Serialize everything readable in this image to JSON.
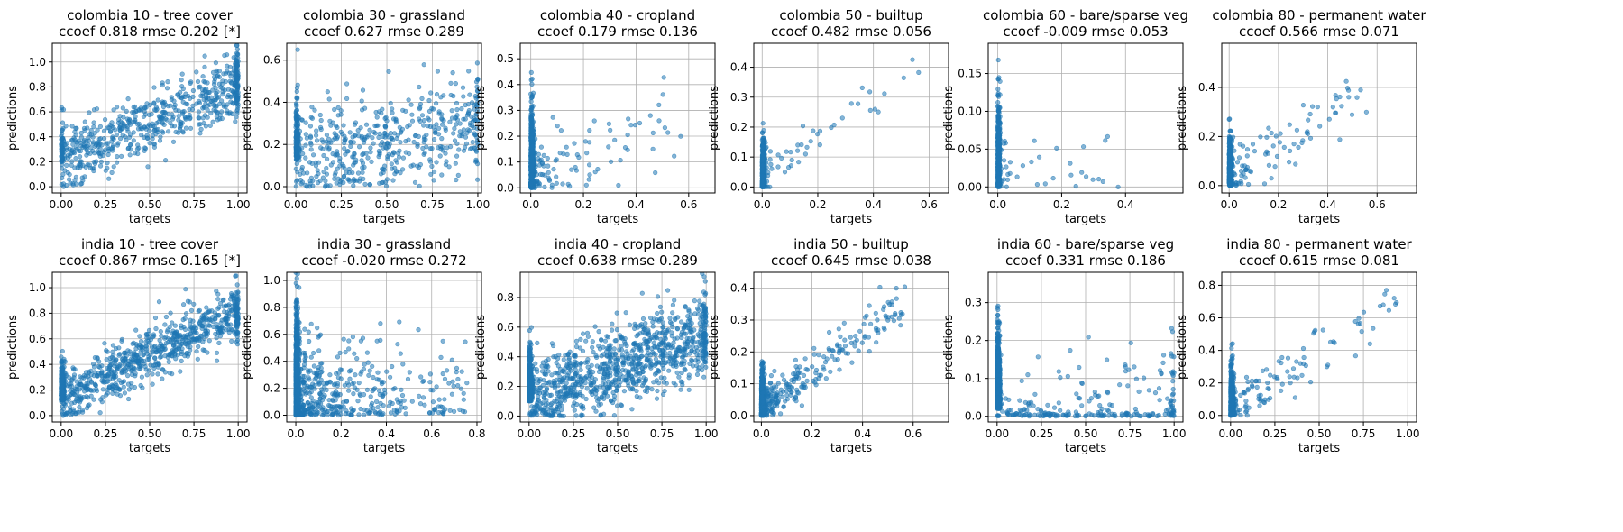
{
  "chart_data": [
    {
      "type": "scatter",
      "title": [
        "colombia 10 - tree cover",
        "ccoef 0.818 rmse 0.202 [*]"
      ],
      "xlabel": "targets",
      "ylabel": "predictions",
      "xlim": [
        -0.05,
        1.05
      ],
      "ylim": [
        -0.05,
        1.15
      ],
      "xticks": [
        "0.00",
        "0.25",
        "0.50",
        "0.75",
        "1.00"
      ],
      "yticks": [
        "0.0",
        "0.2",
        "0.4",
        "0.6",
        "0.8",
        "1.0"
      ],
      "grid": true,
      "pattern": "linear",
      "n": 700,
      "y_intercept": 0.2,
      "y_slope": 0.62,
      "noise": 0.13,
      "mass_x0": 0.1,
      "mass_x1": 0.15
    },
    {
      "type": "scatter",
      "title": [
        "colombia 30 - grassland",
        "ccoef 0.627 rmse 0.289"
      ],
      "xlabel": "targets",
      "ylabel": "predictions",
      "xlim": [
        -0.05,
        1.02
      ],
      "ylim": [
        -0.03,
        0.68
      ],
      "xticks": [
        "0.00",
        "0.25",
        "0.50",
        "0.75",
        "1.00"
      ],
      "yticks": [
        "0.0",
        "0.2",
        "0.4",
        "0.6"
      ],
      "grid": true,
      "pattern": "cloud",
      "n": 650,
      "y_intercept": 0.12,
      "y_slope": 0.18,
      "noise": 0.12,
      "mass_x0": 0.2,
      "mass_x1": 0.05
    },
    {
      "type": "scatter",
      "title": [
        "colombia 40 - cropland",
        "ccoef 0.179 rmse 0.136"
      ],
      "xlabel": "targets",
      "ylabel": "predictions",
      "xlim": [
        -0.04,
        0.7
      ],
      "ylim": [
        -0.02,
        0.56
      ],
      "xticks": [
        "0.0",
        "0.2",
        "0.4",
        "0.6"
      ],
      "yticks": [
        "0.0",
        "0.1",
        "0.2",
        "0.3",
        "0.4",
        "0.5"
      ],
      "grid": true,
      "pattern": "zero",
      "n": 700,
      "y_intercept": 0.04,
      "y_slope": 0.4,
      "noise": 0.08,
      "mass_x0": 0.8,
      "mass_x1": 0.0
    },
    {
      "type": "scatter",
      "title": [
        "colombia 50 - builtup",
        "ccoef 0.482 rmse 0.056"
      ],
      "xlabel": "targets",
      "ylabel": "predictions",
      "xlim": [
        -0.03,
        0.67
      ],
      "ylim": [
        -0.02,
        0.48
      ],
      "xticks": [
        "0.0",
        "0.2",
        "0.4",
        "0.6"
      ],
      "yticks": [
        "0.0",
        "0.1",
        "0.2",
        "0.3",
        "0.4"
      ],
      "grid": true,
      "pattern": "zero",
      "n": 500,
      "y_intercept": 0.02,
      "y_slope": 0.7,
      "noise": 0.04,
      "mass_x0": 0.85,
      "mass_x1": 0.0
    },
    {
      "type": "scatter",
      "title": [
        "colombia 60 - bare/sparse veg",
        "ccoef -0.009 rmse 0.053"
      ],
      "xlabel": "targets",
      "ylabel": "predictions",
      "xlim": [
        -0.03,
        0.58
      ],
      "ylim": [
        -0.008,
        0.19
      ],
      "xticks": [
        "0.0",
        "0.2",
        "0.4"
      ],
      "yticks": [
        "0.00",
        "0.05",
        "0.10",
        "0.15"
      ],
      "grid": true,
      "pattern": "zero",
      "n": 500,
      "y_intercept": 0.01,
      "y_slope": 0.0,
      "noise": 0.03,
      "mass_x0": 0.9,
      "mass_x1": 0.0
    },
    {
      "type": "scatter",
      "title": [
        "colombia 80 - permanent water",
        "ccoef 0.566 rmse 0.071"
      ],
      "xlabel": "targets",
      "ylabel": "predictions",
      "xlim": [
        -0.03,
        0.76
      ],
      "ylim": [
        -0.03,
        0.58
      ],
      "xticks": [
        "0.0",
        "0.2",
        "0.4",
        "0.6"
      ],
      "yticks": [
        "0.0",
        "0.2",
        "0.4"
      ],
      "grid": true,
      "pattern": "zero",
      "n": 500,
      "y_intercept": 0.02,
      "y_slope": 0.65,
      "noise": 0.06,
      "mass_x0": 0.75,
      "mass_x1": 0.0
    },
    {
      "type": "scatter",
      "title": [
        "india 10 - tree cover",
        "ccoef 0.867 rmse 0.165 [*]"
      ],
      "xlabel": "targets",
      "ylabel": "predictions",
      "xlim": [
        -0.05,
        1.05
      ],
      "ylim": [
        -0.05,
        1.12
      ],
      "xticks": [
        "0.00",
        "0.25",
        "0.50",
        "0.75",
        "1.00"
      ],
      "yticks": [
        "0.0",
        "0.2",
        "0.4",
        "0.6",
        "0.8",
        "1.0"
      ],
      "grid": true,
      "pattern": "linear",
      "n": 1200,
      "y_intercept": 0.12,
      "y_slope": 0.7,
      "noise": 0.1,
      "mass_x0": 0.35,
      "mass_x1": 0.05
    },
    {
      "type": "scatter",
      "title": [
        "india 30 - grassland",
        "ccoef -0.020 rmse 0.272"
      ],
      "xlabel": "targets",
      "ylabel": "predictions",
      "xlim": [
        -0.04,
        0.82
      ],
      "ylim": [
        -0.05,
        1.06
      ],
      "xticks": [
        "0.0",
        "0.2",
        "0.4",
        "0.6",
        "0.8"
      ],
      "yticks": [
        "0.0",
        "0.2",
        "0.4",
        "0.6",
        "0.8",
        "1.0"
      ],
      "grid": true,
      "pattern": "zero",
      "n": 1100,
      "y_intercept": 0.15,
      "y_slope": 0.0,
      "noise": 0.2,
      "mass_x0": 0.45,
      "mass_x1": 0.0
    },
    {
      "type": "scatter",
      "title": [
        "india 40 - cropland",
        "ccoef 0.638 rmse 0.289"
      ],
      "xlabel": "targets",
      "ylabel": "predictions",
      "xlim": [
        -0.05,
        1.05
      ],
      "ylim": [
        -0.04,
        0.97
      ],
      "xticks": [
        "0.00",
        "0.25",
        "0.50",
        "0.75",
        "1.00"
      ],
      "yticks": [
        "0.0",
        "0.2",
        "0.4",
        "0.6",
        "0.8"
      ],
      "grid": true,
      "pattern": "cloud",
      "n": 1300,
      "y_intercept": 0.1,
      "y_slope": 0.45,
      "noise": 0.14,
      "mass_x0": 0.25,
      "mass_x1": 0.05
    },
    {
      "type": "scatter",
      "title": [
        "india 50 - builtup",
        "ccoef 0.645 rmse 0.038"
      ],
      "xlabel": "targets",
      "ylabel": "predictions",
      "xlim": [
        -0.03,
        0.74
      ],
      "ylim": [
        -0.02,
        0.45
      ],
      "xticks": [
        "0.0",
        "0.2",
        "0.4",
        "0.6"
      ],
      "yticks": [
        "0.0",
        "0.1",
        "0.2",
        "0.3",
        "0.4"
      ],
      "grid": true,
      "pattern": "zero",
      "n": 900,
      "y_intercept": 0.02,
      "y_slope": 0.6,
      "noise": 0.035,
      "mass_x0": 0.6,
      "mass_x1": 0.0
    },
    {
      "type": "scatter",
      "title": [
        "india 60 - bare/sparse veg",
        "ccoef 0.331 rmse 0.186"
      ],
      "xlabel": "targets",
      "ylabel": "predictions",
      "xlim": [
        -0.05,
        1.05
      ],
      "ylim": [
        -0.015,
        0.38
      ],
      "xticks": [
        "0.00",
        "0.25",
        "0.50",
        "0.75",
        "1.00"
      ],
      "yticks": [
        "0.0",
        "0.1",
        "0.2",
        "0.3"
      ],
      "grid": true,
      "pattern": "sparse",
      "n": 900,
      "y_intercept": 0.02,
      "y_slope": 0.05,
      "noise": 0.07,
      "mass_x0": 0.75,
      "mass_x1": 0.04
    },
    {
      "type": "scatter",
      "title": [
        "india 80 - permanent water",
        "ccoef 0.615 rmse 0.081"
      ],
      "xlabel": "targets",
      "ylabel": "predictions",
      "xlim": [
        -0.05,
        1.05
      ],
      "ylim": [
        -0.04,
        0.88
      ],
      "xticks": [
        "0.00",
        "0.25",
        "0.50",
        "0.75",
        "1.00"
      ],
      "yticks": [
        "0.0",
        "0.2",
        "0.4",
        "0.6",
        "0.8"
      ],
      "grid": true,
      "pattern": "zero",
      "n": 600,
      "y_intercept": 0.03,
      "y_slope": 0.7,
      "noise": 0.08,
      "mass_x0": 0.75,
      "mass_x1": 0.0
    }
  ]
}
